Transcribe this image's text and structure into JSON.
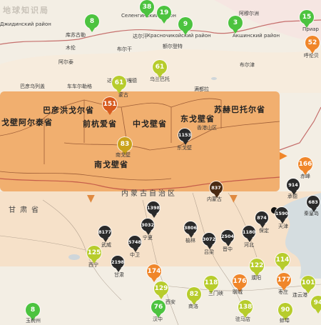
{
  "watermark": "地球知识局",
  "regions": [
    {
      "name": "戈壁阿尔泰省"
    },
    {
      "name": "巴彦洪戈尔省"
    },
    {
      "name": "前杭爱省"
    },
    {
      "name": "中戈壁省"
    },
    {
      "name": "东戈壁省"
    },
    {
      "name": "苏赫巴托尔省"
    },
    {
      "name": "南戈壁省"
    }
  ],
  "provinces": {
    "gansu": "甘肃省",
    "neimenggu": "内蒙古自治区"
  },
  "markers": [
    {
      "value": "8",
      "color": "#4cc33f",
      "label": "库苏古勒"
    },
    {
      "value": "38",
      "color": "#4cc33f",
      "label": ""
    },
    {
      "value": "19",
      "color": "#4cc33f",
      "label": ""
    },
    {
      "value": "9",
      "color": "#4cc33f",
      "label": "Красночикойский район"
    },
    {
      "value": "3",
      "color": "#4cc33f",
      "label": "Акшинский район"
    },
    {
      "value": "15",
      "color": "#4cc33f",
      "label": "Приар"
    },
    {
      "value": "52",
      "color": "#f0862a",
      "label": "呼伦贝"
    },
    {
      "value": "61",
      "color": "#b7cc2c",
      "label": "乌兰巴托"
    },
    {
      "value": "61",
      "color": "#b7cc2c",
      "label": ""
    },
    {
      "value": "151",
      "color": "#d75a1e",
      "label": ""
    },
    {
      "value": "83",
      "color": "#c9a21b",
      "label": "南戈壁"
    },
    {
      "value": "1153",
      "color": "#2a2a2a",
      "label": "东戈壁"
    },
    {
      "value": "166",
      "color": "#f0862a",
      "label": "赤峰"
    },
    {
      "value": "914",
      "color": "#2a2a2a",
      "label": "承德"
    },
    {
      "value": "837",
      "color": "#4a2a12",
      "label": "内蒙古"
    },
    {
      "value": "683",
      "color": "#2a2a2a",
      "label": "秦皇岛"
    },
    {
      "value": "874",
      "color": "#2a2a2a",
      "label": "保定"
    },
    {
      "value": "1590",
      "color": "#2a2a2a",
      "label": "天津"
    },
    {
      "value": "1398",
      "color": "#2a2a2a",
      "label": ""
    },
    {
      "value": "3032",
      "color": "#2a2a2a",
      "label": "宁夏"
    },
    {
      "value": "8177",
      "color": "#2a2a2a",
      "label": "武威"
    },
    {
      "value": "5748",
      "color": "#2a2a2a",
      "label": "中卫"
    },
    {
      "value": "3806",
      "color": "#2a2a2a",
      "label": "榆林"
    },
    {
      "value": "3072",
      "color": "#2a2a2a",
      "label": "吕梁"
    },
    {
      "value": "2504",
      "color": "#2a2a2a",
      "label": "晋中"
    },
    {
      "value": "1180",
      "color": "#2a2a2a",
      "label": "河北"
    },
    {
      "value": "125",
      "color": "#b7cc2c",
      "label": "西宁"
    },
    {
      "value": "2198",
      "color": "#2a2a2a",
      "label": "甘肃"
    },
    {
      "value": "174",
      "color": "#f0862a",
      "label": ""
    },
    {
      "value": "129",
      "color": "#b7cc2c",
      "label": ""
    },
    {
      "value": "82",
      "color": "#b7cc2c",
      "label": "商洛"
    },
    {
      "value": "118",
      "color": "#b7cc2c",
      "label": "三门峡"
    },
    {
      "value": "176",
      "color": "#f0862a",
      "label": "聊城"
    },
    {
      "value": "122",
      "color": "#b7cc2c",
      "label": "濮阳"
    },
    {
      "value": "114",
      "color": "#b7cc2c",
      "label": ""
    },
    {
      "value": "177",
      "color": "#f0862a",
      "label": "枣庄"
    },
    {
      "value": "101",
      "color": "#b7cc2c",
      "label": "连云港"
    },
    {
      "value": "76",
      "color": "#4cc33f",
      "label": "汉中"
    },
    {
      "value": "138",
      "color": "#b7cc2c",
      "label": "驻马店"
    },
    {
      "value": "90",
      "color": "#b7cc2c",
      "label": "蚌埠"
    },
    {
      "value": "94",
      "color": "#b7cc2c",
      "label": ""
    },
    {
      "value": "8",
      "color": "#4cc33f",
      "label": "玉树州"
    }
  ],
  "place_labels": [
    "Селенгинский район",
    "Джидинский район",
    "阿尔泰",
    "达尔汗",
    "阿穆尔洲",
    "布尔干",
    "木伦",
    "额尔登特",
    "车车尔勒格",
    "巴彦乌列盖",
    "蒙古",
    "达兰扎达嘎德",
    "满都拉",
    "香港山区",
    "西安",
    "布尔津"
  ],
  "colors": {
    "highlight_band": "#f0a35a",
    "land": "#f3eee4",
    "border": "#b25a3a"
  },
  "arrows": {
    "right": "▶",
    "down": "▼"
  }
}
